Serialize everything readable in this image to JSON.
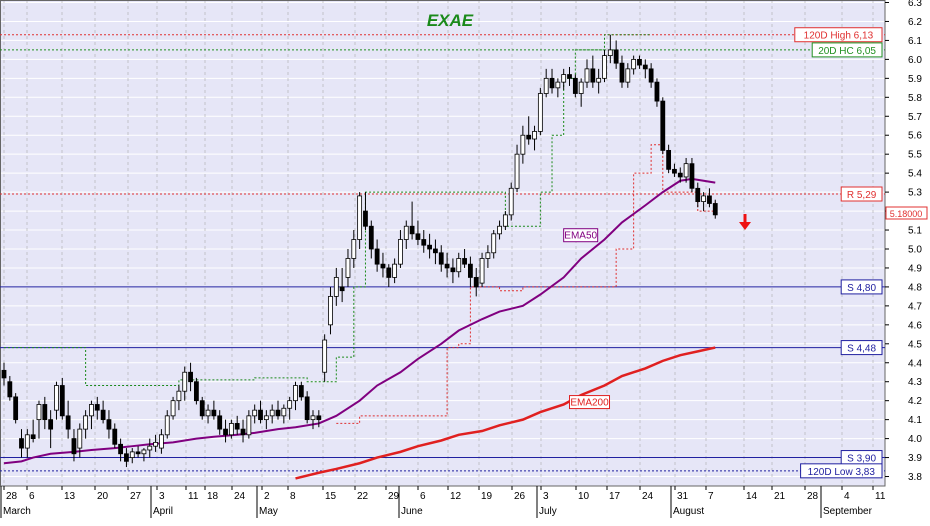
{
  "chart_data": {
    "type": "candlestick",
    "title": "EXAE",
    "colors": {
      "plot_bg": "#e6e6f7",
      "grid": "#aaaaaa",
      "candle_up": "#ffffff",
      "candle_down": "#000000",
      "ema50": "#800080",
      "ema200": "#e02020",
      "title": "#1a8a1a",
      "resistance": "#e03030",
      "support": "#2020a0",
      "hc20": "#209020"
    },
    "ylim": [
      3.75,
      6.3
    ],
    "y_ticks": [
      3.8,
      3.9,
      4.0,
      4.1,
      4.2,
      4.3,
      4.4,
      4.5,
      4.6,
      4.7,
      4.8,
      4.9,
      5.0,
      5.1,
      5.2,
      5.3,
      5.4,
      5.5,
      5.6,
      5.7,
      5.8,
      5.9,
      6.0,
      6.1,
      6.2,
      6.3
    ],
    "x_day_ticks": [
      "28",
      "6",
      "13",
      "20",
      "27",
      "3",
      "11",
      "18",
      "24",
      "2",
      "8",
      "15",
      "22",
      "29",
      "6",
      "12",
      "19",
      "26",
      "3",
      "10",
      "17",
      "24",
      "31",
      "7",
      "14",
      "21",
      "28",
      "4",
      "11"
    ],
    "month_labels": [
      "March",
      "April",
      "May",
      "June",
      "July",
      "August",
      "September"
    ],
    "levels": [
      {
        "label": "120D High 6,13",
        "value": 6.13,
        "style": "resistance-dotted"
      },
      {
        "label": "20D HC 6,05",
        "value": 6.05,
        "style": "hc-dotted"
      },
      {
        "label": "R 5,29",
        "value": 5.29,
        "style": "resistance-dotted"
      },
      {
        "label": "S 4,80",
        "value": 4.8,
        "style": "support-solid"
      },
      {
        "label": "S 4,48",
        "value": 4.48,
        "style": "support-solid"
      },
      {
        "label": "S 3,90",
        "value": 3.9,
        "style": "support-solid"
      },
      {
        "label": "120D Low 3,83",
        "value": 3.83,
        "style": "support-dotted"
      }
    ],
    "last_price_label": "5.18000",
    "last_price": 5.18,
    "series": [
      {
        "name": "EMA50",
        "values": [
          [
            0,
            3.87
          ],
          [
            3,
            3.88
          ],
          [
            5,
            3.9
          ],
          [
            8,
            3.92
          ],
          [
            12,
            3.93
          ],
          [
            15,
            3.94
          ],
          [
            19,
            3.95
          ],
          [
            22,
            3.96
          ],
          [
            25,
            3.97
          ],
          [
            29,
            3.98
          ],
          [
            33,
            4.0
          ],
          [
            36,
            4.01
          ],
          [
            40,
            4.02
          ],
          [
            43,
            4.03
          ],
          [
            47,
            4.05
          ],
          [
            50,
            4.06
          ],
          [
            54,
            4.08
          ],
          [
            57,
            4.12
          ],
          [
            61,
            4.2
          ],
          [
            64,
            4.28
          ],
          [
            68,
            4.35
          ],
          [
            71,
            4.42
          ],
          [
            75,
            4.5
          ],
          [
            78,
            4.57
          ],
          [
            82,
            4.63
          ],
          [
            85,
            4.67
          ],
          [
            89,
            4.7
          ],
          [
            92,
            4.76
          ],
          [
            96,
            4.85
          ],
          [
            99,
            4.95
          ],
          [
            103,
            5.05
          ],
          [
            106,
            5.14
          ],
          [
            110,
            5.23
          ],
          [
            113,
            5.3
          ],
          [
            116,
            5.36
          ],
          [
            118,
            5.37
          ],
          [
            120,
            5.36
          ],
          [
            122,
            5.35
          ]
        ]
      },
      {
        "name": "EMA200",
        "values": [
          [
            50,
            3.79
          ],
          [
            54,
            3.82
          ],
          [
            57,
            3.84
          ],
          [
            61,
            3.87
          ],
          [
            64,
            3.9
          ],
          [
            68,
            3.93
          ],
          [
            71,
            3.96
          ],
          [
            75,
            3.99
          ],
          [
            78,
            4.02
          ],
          [
            82,
            4.04
          ],
          [
            85,
            4.07
          ],
          [
            89,
            4.1
          ],
          [
            92,
            4.14
          ],
          [
            96,
            4.18
          ],
          [
            99,
            4.23
          ],
          [
            103,
            4.28
          ],
          [
            106,
            4.33
          ],
          [
            110,
            4.37
          ],
          [
            113,
            4.41
          ],
          [
            116,
            4.44
          ],
          [
            119,
            4.46
          ],
          [
            122,
            4.48
          ]
        ]
      }
    ],
    "trailing_high": [
      [
        0,
        4.48
      ],
      [
        11,
        4.48
      ],
      [
        14,
        4.28
      ],
      [
        19,
        4.28
      ],
      [
        30,
        4.31
      ],
      [
        43,
        4.32
      ],
      [
        52,
        4.3
      ],
      [
        56,
        4.3
      ],
      [
        57,
        4.43
      ],
      [
        60,
        4.8
      ],
      [
        62,
        5.3
      ],
      [
        84,
        5.3
      ],
      [
        86,
        5.12
      ],
      [
        89,
        5.12
      ],
      [
        92,
        5.3
      ],
      [
        94,
        5.6
      ],
      [
        96,
        5.9
      ],
      [
        98,
        6.05
      ],
      [
        100,
        6.05
      ],
      [
        103,
        6.13
      ],
      [
        111,
        6.13
      ]
    ],
    "trailing_low": [
      [
        57,
        4.08
      ],
      [
        61,
        4.12
      ],
      [
        65,
        4.12
      ],
      [
        70,
        4.12
      ],
      [
        74,
        4.12
      ],
      [
        76,
        4.48
      ],
      [
        78,
        4.5
      ],
      [
        80,
        4.8
      ],
      [
        83,
        4.8
      ],
      [
        85,
        4.78
      ],
      [
        89,
        4.8
      ],
      [
        103,
        4.8
      ],
      [
        105,
        5.0
      ],
      [
        108,
        5.4
      ],
      [
        111,
        5.55
      ],
      [
        113,
        5.3
      ],
      [
        119,
        5.2
      ],
      [
        122,
        5.25
      ]
    ],
    "candles": [
      [
        4.36,
        4.4,
        4.28,
        4.32
      ],
      [
        4.3,
        4.33,
        4.2,
        4.22
      ],
      [
        4.22,
        4.24,
        4.08,
        4.1
      ],
      [
        4.0,
        4.05,
        3.9,
        3.95
      ],
      [
        3.95,
        4.05,
        3.9,
        4.02
      ],
      [
        4.02,
        4.1,
        3.98,
        4.0
      ],
      [
        4.1,
        4.2,
        4.0,
        4.18
      ],
      [
        4.18,
        4.22,
        4.05,
        4.1
      ],
      [
        4.1,
        4.15,
        3.95,
        4.05
      ],
      [
        4.15,
        4.3,
        4.1,
        4.28
      ],
      [
        4.28,
        4.32,
        4.1,
        4.12
      ],
      [
        4.12,
        4.2,
        4.0,
        4.05
      ],
      [
        4.0,
        4.05,
        3.88,
        3.92
      ],
      [
        3.95,
        4.08,
        3.9,
        4.05
      ],
      [
        4.05,
        4.15,
        4.0,
        4.12
      ],
      [
        4.12,
        4.2,
        4.05,
        4.18
      ],
      [
        4.18,
        4.22,
        4.1,
        4.15
      ],
      [
        4.15,
        4.2,
        4.08,
        4.1
      ],
      [
        4.1,
        4.15,
        4.0,
        4.05
      ],
      [
        4.05,
        4.08,
        3.95,
        3.97
      ],
      [
        3.97,
        4.0,
        3.88,
        3.92
      ],
      [
        3.92,
        3.95,
        3.85,
        3.88
      ],
      [
        3.9,
        3.95,
        3.87,
        3.93
      ],
      [
        3.93,
        3.96,
        3.9,
        3.92
      ],
      [
        3.92,
        3.95,
        3.88,
        3.94
      ],
      [
        3.94,
        4.0,
        3.9,
        3.96
      ],
      [
        3.96,
        4.02,
        3.93,
        3.98
      ],
      [
        3.95,
        4.05,
        3.92,
        4.02
      ],
      [
        4.02,
        4.15,
        4.0,
        4.12
      ],
      [
        4.12,
        4.22,
        4.1,
        4.2
      ],
      [
        4.2,
        4.28,
        4.15,
        4.25
      ],
      [
        4.25,
        4.38,
        4.2,
        4.35
      ],
      [
        4.35,
        4.4,
        4.25,
        4.3
      ],
      [
        4.3,
        4.32,
        4.18,
        4.2
      ],
      [
        4.2,
        4.22,
        4.1,
        4.12
      ],
      [
        4.12,
        4.18,
        4.08,
        4.15
      ],
      [
        4.15,
        4.2,
        4.1,
        4.12
      ],
      [
        4.12,
        4.15,
        4.02,
        4.05
      ],
      [
        4.05,
        4.1,
        3.98,
        4.02
      ],
      [
        4.02,
        4.1,
        4.0,
        4.08
      ],
      [
        4.08,
        4.12,
        4.02,
        4.05
      ],
      [
        4.05,
        4.1,
        3.98,
        4.02
      ],
      [
        4.02,
        4.15,
        4.0,
        4.12
      ],
      [
        4.12,
        4.18,
        4.08,
        4.15
      ],
      [
        4.15,
        4.2,
        4.08,
        4.1
      ],
      [
        4.1,
        4.15,
        4.05,
        4.12
      ],
      [
        4.12,
        4.18,
        4.08,
        4.15
      ],
      [
        4.15,
        4.2,
        4.1,
        4.12
      ],
      [
        4.12,
        4.18,
        4.08,
        4.16
      ],
      [
        4.16,
        4.22,
        4.1,
        4.2
      ],
      [
        4.2,
        4.3,
        4.15,
        4.28
      ],
      [
        4.28,
        4.3,
        4.2,
        4.22
      ],
      [
        4.22,
        4.25,
        4.08,
        4.1
      ],
      [
        4.1,
        4.15,
        4.05,
        4.12
      ],
      [
        4.12,
        4.15,
        4.06,
        4.1
      ],
      [
        4.35,
        4.55,
        4.3,
        4.52
      ],
      [
        4.6,
        4.8,
        4.55,
        4.75
      ],
      [
        4.75,
        4.9,
        4.7,
        4.85
      ],
      [
        4.8,
        4.9,
        4.72,
        4.78
      ],
      [
        4.85,
        5.0,
        4.8,
        4.95
      ],
      [
        4.95,
        5.1,
        4.9,
        5.05
      ],
      [
        5.05,
        5.3,
        5.0,
        5.28
      ],
      [
        5.2,
        5.3,
        5.1,
        5.12
      ],
      [
        5.12,
        5.15,
        4.95,
        5.0
      ],
      [
        5.0,
        5.05,
        4.88,
        4.92
      ],
      [
        4.92,
        4.98,
        4.85,
        4.9
      ],
      [
        4.9,
        4.92,
        4.8,
        4.85
      ],
      [
        4.85,
        4.95,
        4.82,
        4.92
      ],
      [
        4.92,
        5.1,
        4.9,
        5.05
      ],
      [
        5.05,
        5.15,
        5.0,
        5.12
      ],
      [
        5.12,
        5.25,
        5.05,
        5.08
      ],
      [
        5.08,
        5.15,
        5.02,
        5.05
      ],
      [
        5.05,
        5.1,
        4.98,
        5.02
      ],
      [
        5.02,
        5.08,
        4.95,
        5.0
      ],
      [
        5.0,
        5.05,
        4.92,
        4.98
      ],
      [
        4.98,
        5.02,
        4.88,
        4.92
      ],
      [
        4.92,
        4.98,
        4.85,
        4.9
      ],
      [
        4.9,
        4.95,
        4.82,
        4.88
      ],
      [
        4.88,
        4.98,
        4.85,
        4.95
      ],
      [
        4.95,
        5.0,
        4.9,
        4.92
      ],
      [
        4.92,
        4.96,
        4.8,
        4.85
      ],
      [
        4.85,
        4.9,
        4.75,
        4.8
      ],
      [
        4.82,
        4.98,
        4.8,
        4.95
      ],
      [
        4.95,
        5.02,
        4.9,
        4.98
      ],
      [
        4.98,
        5.1,
        4.95,
        5.08
      ],
      [
        5.08,
        5.15,
        5.05,
        5.12
      ],
      [
        5.12,
        5.2,
        5.1,
        5.18
      ],
      [
        5.18,
        5.35,
        5.15,
        5.32
      ],
      [
        5.32,
        5.55,
        5.3,
        5.5
      ],
      [
        5.5,
        5.65,
        5.45,
        5.6
      ],
      [
        5.6,
        5.7,
        5.55,
        5.58
      ],
      [
        5.58,
        5.65,
        5.52,
        5.62
      ],
      [
        5.62,
        5.85,
        5.6,
        5.82
      ],
      [
        5.82,
        5.95,
        5.8,
        5.9
      ],
      [
        5.9,
        5.95,
        5.82,
        5.85
      ],
      [
        5.85,
        5.9,
        5.8,
        5.88
      ],
      [
        5.88,
        5.95,
        5.84,
        5.92
      ],
      [
        5.92,
        5.96,
        5.86,
        5.9
      ],
      [
        5.9,
        5.92,
        5.8,
        5.82
      ],
      [
        5.82,
        5.9,
        5.75,
        5.88
      ],
      [
        5.88,
        6.0,
        5.85,
        5.95
      ],
      [
        5.95,
        6.02,
        5.85,
        5.88
      ],
      [
        5.88,
        5.95,
        5.82,
        5.9
      ],
      [
        5.9,
        6.05,
        5.88,
        6.02
      ],
      [
        6.02,
        6.13,
        5.98,
        6.05
      ],
      [
        6.05,
        6.1,
        5.95,
        5.98
      ],
      [
        5.98,
        6.02,
        5.85,
        5.88
      ],
      [
        5.88,
        5.98,
        5.85,
        5.95
      ],
      [
        5.95,
        6.02,
        5.92,
        6.0
      ],
      [
        6.0,
        6.02,
        5.95,
        5.97
      ],
      [
        5.97,
        6.0,
        5.9,
        5.95
      ],
      [
        5.95,
        5.98,
        5.85,
        5.88
      ],
      [
        5.88,
        5.9,
        5.75,
        5.78
      ],
      [
        5.78,
        5.8,
        5.5,
        5.52
      ],
      [
        5.52,
        5.55,
        5.4,
        5.42
      ],
      [
        5.42,
        5.45,
        5.38,
        5.4
      ],
      [
        5.4,
        5.43,
        5.35,
        5.38
      ],
      [
        5.38,
        5.48,
        5.35,
        5.45
      ],
      [
        5.45,
        5.48,
        5.3,
        5.32
      ],
      [
        5.32,
        5.35,
        5.22,
        5.25
      ],
      [
        5.25,
        5.3,
        5.2,
        5.28
      ],
      [
        5.28,
        5.32,
        5.22,
        5.24
      ],
      [
        5.24,
        5.26,
        5.16,
        5.18
      ]
    ]
  }
}
